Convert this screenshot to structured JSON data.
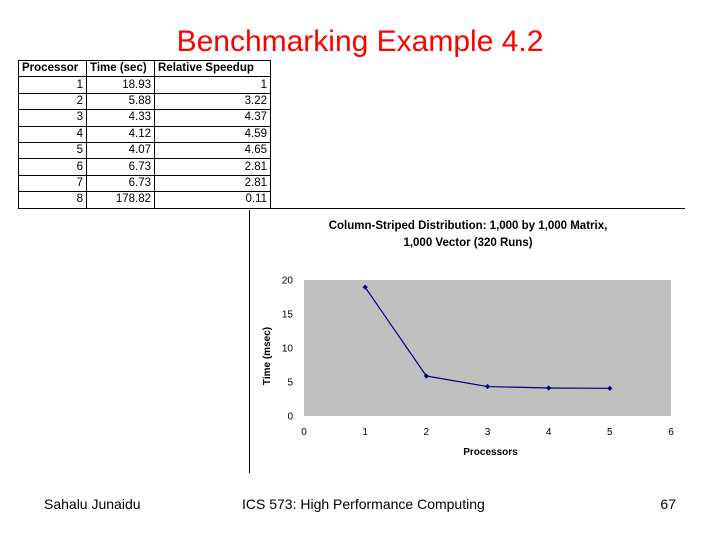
{
  "slide": {
    "title": "Benchmarking Example 4.2"
  },
  "table": {
    "headers": [
      "Processor",
      "Time (sec)",
      "Relative Speedup"
    ],
    "rows": [
      [
        "1",
        "18.93",
        "1"
      ],
      [
        "2",
        "5.88",
        "3.22"
      ],
      [
        "3",
        "4.33",
        "4.37"
      ],
      [
        "4",
        "4.12",
        "4.59"
      ],
      [
        "5",
        "4.07",
        "4.65"
      ],
      [
        "6",
        "6.73",
        "2.81"
      ],
      [
        "7",
        "6.73",
        "2.81"
      ],
      [
        "8",
        "178.82",
        "0.11"
      ]
    ]
  },
  "chart_data": {
    "type": "line",
    "title": "Column-Striped Distribution: 1,000 by 1,000 Matrix, 1,000 Vector (320 Runs)",
    "title_lines": [
      "Column-Striped Distribution: 1,000 by 1,000 Matrix,",
      "1,000 Vector (320 Runs)"
    ],
    "xlabel": "Processors",
    "ylabel": "Time (msec)",
    "xlim": [
      0,
      6
    ],
    "ylim": [
      0,
      20
    ],
    "xticks": [
      0,
      1,
      2,
      3,
      4,
      5,
      6
    ],
    "yticks": [
      0,
      5,
      10,
      15,
      20
    ],
    "grid": false,
    "plot_background": "#c0c0c0",
    "line_color": "#000080",
    "series": [
      {
        "x": [
          1,
          2,
          3,
          4,
          5
        ],
        "y": [
          18.93,
          5.88,
          4.33,
          4.12,
          4.07
        ]
      }
    ]
  },
  "footer": {
    "author": "Sahalu Junaidu",
    "course": "ICS 573: High Performance Computing",
    "page": "67"
  }
}
